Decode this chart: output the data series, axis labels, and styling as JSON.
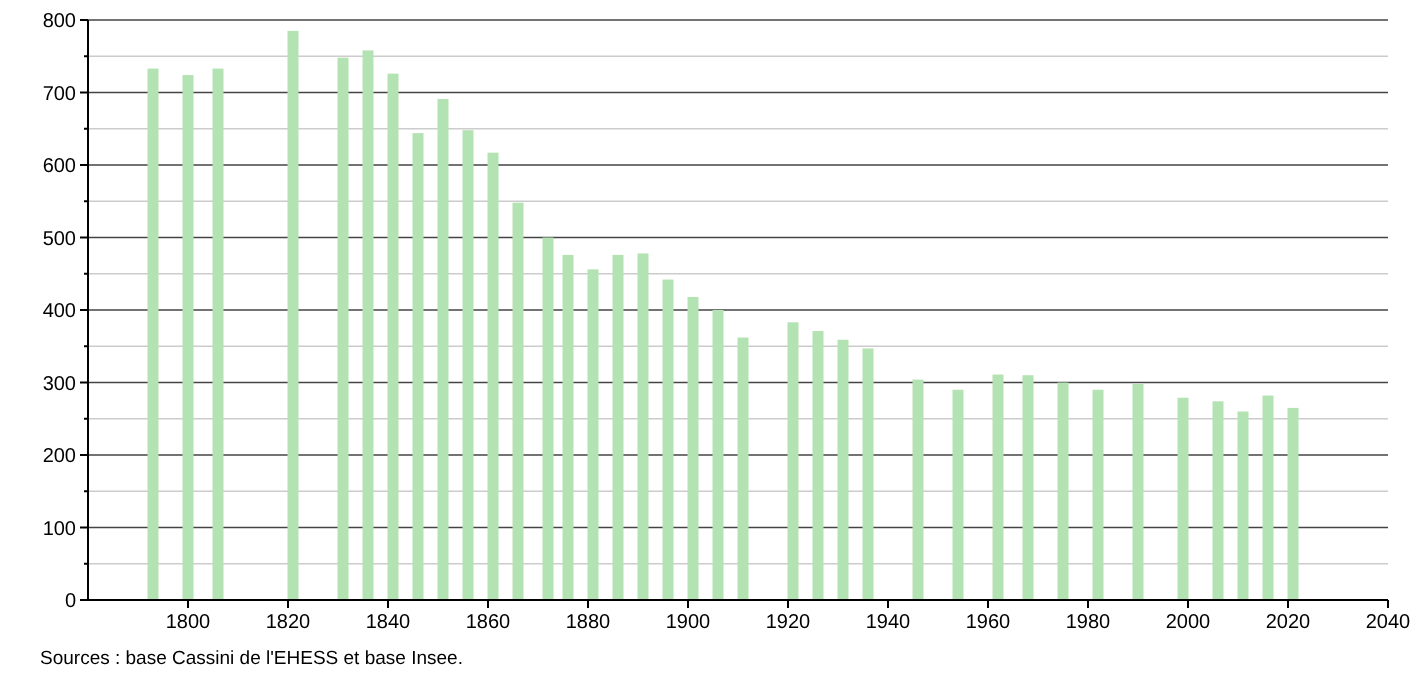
{
  "chart_data": {
    "type": "bar",
    "x": [
      1793,
      1800,
      1806,
      1821,
      1831,
      1836,
      1841,
      1846,
      1851,
      1856,
      1861,
      1866,
      1872,
      1876,
      1881,
      1886,
      1891,
      1896,
      1901,
      1906,
      1911,
      1921,
      1926,
      1931,
      1936,
      1946,
      1954,
      1962,
      1968,
      1975,
      1982,
      1990,
      1999,
      2006,
      2011,
      2016,
      2021
    ],
    "values": [
      733,
      724,
      733,
      785,
      748,
      758,
      726,
      644,
      691,
      648,
      617,
      548,
      500,
      476,
      456,
      476,
      478,
      442,
      418,
      400,
      362,
      383,
      371,
      359,
      347,
      304,
      290,
      311,
      310,
      300,
      290,
      298,
      279,
      274,
      260,
      282,
      265
    ],
    "color": "#b3e2b3",
    "xlim": [
      1780,
      2040
    ],
    "xticks": [
      1800,
      1820,
      1840,
      1860,
      1880,
      1900,
      1920,
      1940,
      1960,
      1980,
      2000,
      2020,
      2040
    ],
    "ylim": [
      0,
      800
    ],
    "yticks": [
      0,
      {
        "value": 50,
        "label": null
      },
      100,
      {
        "value": 150,
        "label": null
      },
      200,
      {
        "value": 250,
        "label": null
      },
      300,
      {
        "value": 350,
        "label": null
      },
      400,
      {
        "value": 450,
        "label": null
      },
      500,
      {
        "value": 550,
        "label": null
      },
      600,
      {
        "value": 650,
        "label": null
      },
      700,
      {
        "value": 750,
        "label": null
      },
      800
    ],
    "grid": "y",
    "annotations": [
      "Sources : base Cassini de l'EHESS et base Insee."
    ]
  }
}
